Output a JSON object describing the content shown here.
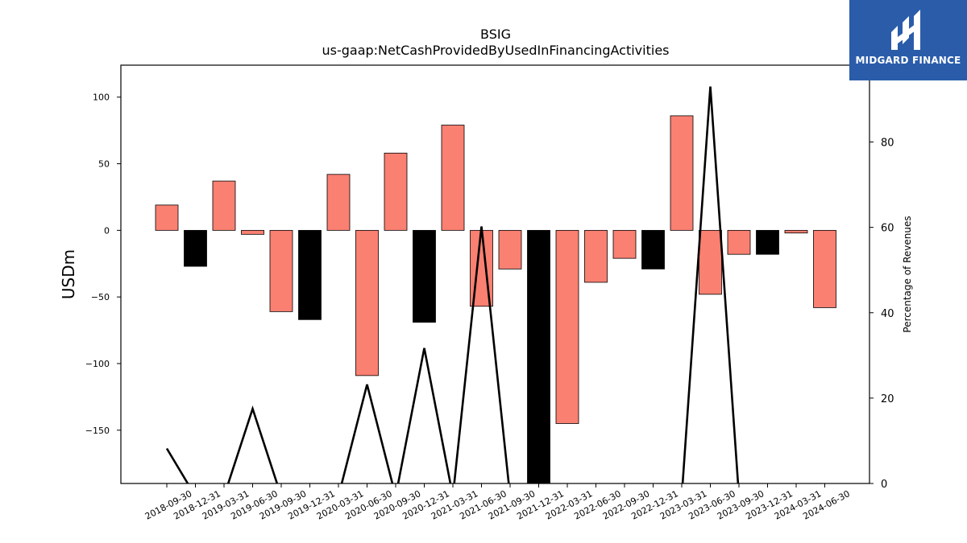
{
  "brand": {
    "name": "MIDGARD FINANCE",
    "bg_color": "#2a5caa"
  },
  "chart_data": {
    "type": "bar",
    "title": "BSIG",
    "subtitle": "us-gaap:NetCashProvidedByUsedInFinancingActivities",
    "ylabel": "USDm",
    "y2label": "Percentage of Revenues",
    "ylim": [
      -190,
      124
    ],
    "y2lim": [
      0,
      98
    ],
    "yticks": [
      -150,
      -100,
      -50,
      0,
      50,
      100
    ],
    "y2ticks": [
      0,
      20,
      40,
      60,
      80
    ],
    "categories": [
      "2018-09-30",
      "2018-12-31",
      "2019-03-31",
      "2019-06-30",
      "2019-09-30",
      "2019-12-31",
      "2020-03-31",
      "2020-06-30",
      "2020-09-30",
      "2020-12-31",
      "2021-03-31",
      "2021-06-30",
      "2021-09-30",
      "2021-12-31",
      "2022-03-31",
      "2022-06-30",
      "2022-09-30",
      "2022-12-31",
      "2023-03-31",
      "2023-06-30",
      "2023-09-30",
      "2023-12-31",
      "2024-03-31",
      "2024-06-30"
    ],
    "series": [
      {
        "type": "bar",
        "values": [
          19,
          -27,
          37,
          -3,
          -61,
          -67,
          42,
          -109,
          58,
          -69,
          79,
          -57,
          -29,
          -190,
          -145,
          -39,
          -21,
          -29,
          86,
          -48,
          -18,
          -18,
          -2,
          -58
        ],
        "colors": [
          "#fa8072",
          "#000000",
          "#fa8072",
          "#fa8072",
          "#fa8072",
          "#000000",
          "#fa8072",
          "#fa8072",
          "#fa8072",
          "#000000",
          "#fa8072",
          "#fa8072",
          "#fa8072",
          "#000000",
          "#fa8072",
          "#fa8072",
          "#fa8072",
          "#000000",
          "#fa8072",
          "#fa8072",
          "#fa8072",
          "#000000",
          "#fa8072",
          "#fa8072"
        ]
      },
      {
        "type": "line",
        "axis": "right",
        "color": "#000000",
        "values": [
          8.2,
          -3,
          -3,
          17.5,
          -3,
          -3,
          -3,
          23.2,
          -3,
          31.7,
          -3,
          60.2,
          -3,
          -3,
          -3,
          -3,
          -3,
          -3,
          -3,
          93.0,
          -3,
          -3,
          -3,
          -3
        ]
      }
    ],
    "grid": false,
    "legend": "none"
  }
}
